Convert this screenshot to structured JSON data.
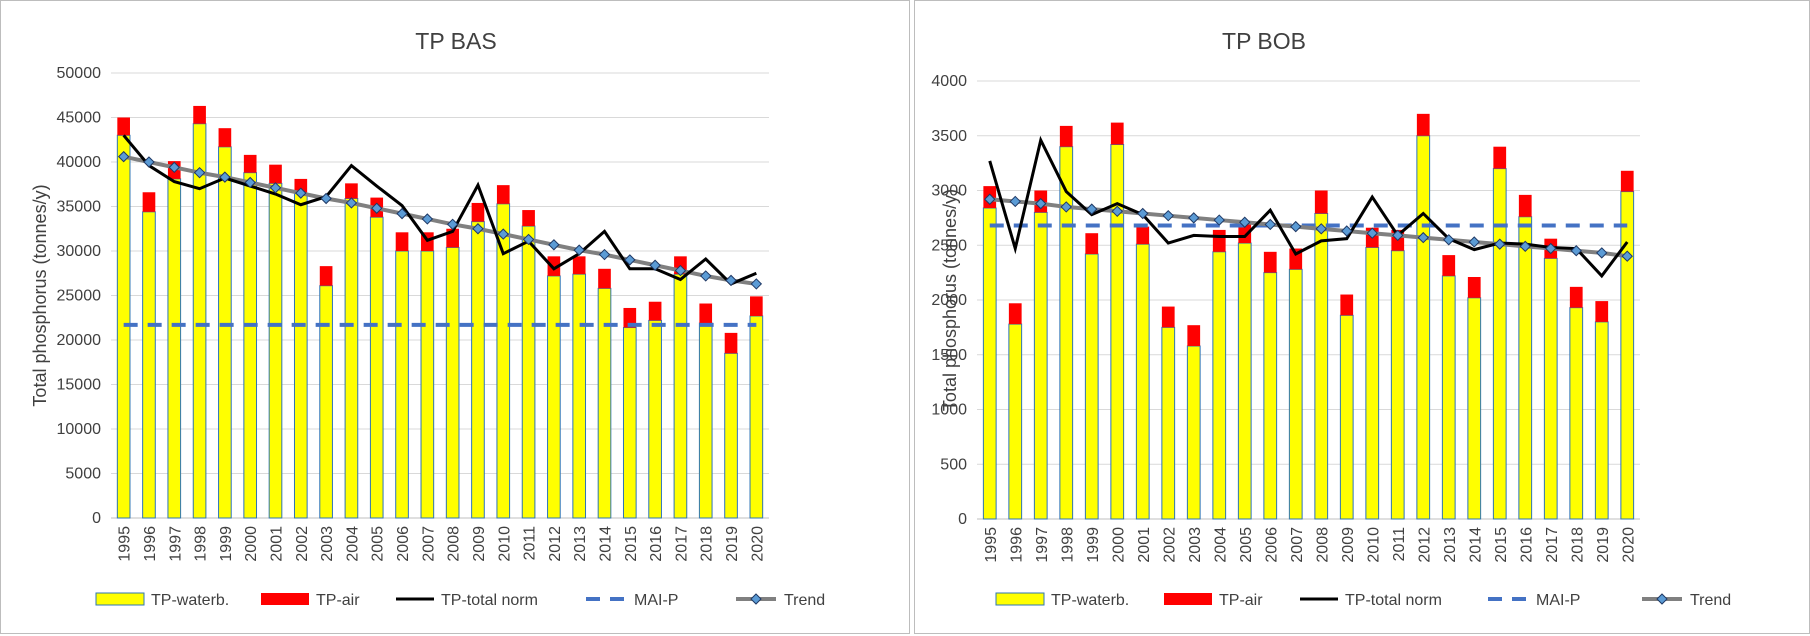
{
  "legend": {
    "waterb": "TP-waterb.",
    "air": "TP-air",
    "total": "TP-total norm",
    "maip": "MAI-P",
    "trend": "Trend"
  },
  "colors": {
    "waterb_fill": "#ffff00",
    "waterb_stroke": "#2e75b6",
    "air": "#ff0000",
    "total": "#000000",
    "maip": "#4472c4",
    "trend": "#808080",
    "trend_marker": "#5b9bd5",
    "grid": "#d9d9d9"
  },
  "chart_data": [
    {
      "type": "bar",
      "title": "TP BAS",
      "ylabel": "Total phosphorus (tonnes/y)",
      "xlabel": "",
      "ylim": [
        0,
        50000
      ],
      "yticks": [
        0,
        5000,
        10000,
        15000,
        20000,
        25000,
        30000,
        35000,
        40000,
        45000,
        50000
      ],
      "grid": true,
      "legend_position": "bottom",
      "categories": [
        "1995",
        "1996",
        "1997",
        "1998",
        "1999",
        "2000",
        "2001",
        "2002",
        "2003",
        "2004",
        "2005",
        "2006",
        "2007",
        "2008",
        "2009",
        "2010",
        "2011",
        "2012",
        "2013",
        "2014",
        "2015",
        "2016",
        "2017",
        "2018",
        "2019",
        "2020"
      ],
      "series": [
        {
          "name": "TP-waterb.",
          "kind": "stacked-bar",
          "values": [
            43000,
            34400,
            38100,
            44300,
            41700,
            38800,
            37600,
            36500,
            26100,
            35900,
            33800,
            30000,
            30000,
            30400,
            33300,
            35300,
            32800,
            27200,
            27400,
            25800,
            21400,
            22200,
            27400,
            21900,
            18500,
            22700
          ]
        },
        {
          "name": "TP-air",
          "kind": "stacked-bar",
          "values": [
            2000,
            2200,
            2000,
            2000,
            2100,
            2000,
            2100,
            1600,
            2200,
            1700,
            2200,
            2100,
            2100,
            2100,
            2100,
            2100,
            1800,
            2200,
            2000,
            2200,
            2200,
            2100,
            2000,
            2200,
            2300,
            2200
          ]
        },
        {
          "name": "TP-total norm",
          "kind": "line",
          "values": [
            43000,
            39600,
            37800,
            37000,
            38200,
            37300,
            36400,
            35200,
            36100,
            39600,
            37300,
            35100,
            31200,
            32200,
            37400,
            29700,
            31100,
            28000,
            29700,
            32200,
            28000,
            28000,
            26800,
            29100,
            26300,
            27500
          ]
        },
        {
          "name": "MAI-P",
          "kind": "dashed-line",
          "values": [
            21700,
            21700,
            21700,
            21700,
            21700,
            21700,
            21700,
            21700,
            21700,
            21700,
            21700,
            21700,
            21700,
            21700,
            21700,
            21700,
            21700,
            21700,
            21700,
            21700,
            21700,
            21700,
            21700,
            21700,
            21700,
            21700
          ]
        },
        {
          "name": "Trend",
          "kind": "line-marker",
          "values": [
            40600,
            40000,
            39400,
            38800,
            38300,
            37700,
            37100,
            36500,
            35900,
            35400,
            34800,
            34200,
            33600,
            33000,
            32500,
            31900,
            31300,
            30700,
            30100,
            29600,
            29000,
            28400,
            27800,
            27200,
            26700,
            26300
          ]
        }
      ]
    },
    {
      "type": "bar",
      "title": "TP BOB",
      "ylabel": "Total phosphorus (tonnes/y)",
      "xlabel": "",
      "ylim": [
        0,
        4000
      ],
      "yticks": [
        0,
        500,
        1000,
        1500,
        2000,
        2500,
        3000,
        3500,
        4000
      ],
      "grid": true,
      "legend_position": "bottom",
      "categories": [
        "1995",
        "1996",
        "1997",
        "1998",
        "1999",
        "2000",
        "2001",
        "2002",
        "2003",
        "2004",
        "2005",
        "2006",
        "2007",
        "2008",
        "2009",
        "2010",
        "2011",
        "2012",
        "2013",
        "2014",
        "2015",
        "2016",
        "2017",
        "2018",
        "2019",
        "2020"
      ],
      "series": [
        {
          "name": "TP-waterb.",
          "kind": "stacked-bar",
          "values": [
            2840,
            1780,
            2800,
            3400,
            2420,
            3420,
            2510,
            1750,
            1580,
            2440,
            2520,
            2250,
            2280,
            2790,
            1860,
            2480,
            2450,
            3500,
            2220,
            2020,
            3200,
            2760,
            2380,
            1930,
            1800,
            2990
          ]
        },
        {
          "name": "TP-air",
          "kind": "stacked-bar",
          "values": [
            200,
            190,
            200,
            190,
            190,
            200,
            160,
            190,
            190,
            200,
            200,
            190,
            190,
            210,
            190,
            180,
            190,
            200,
            190,
            190,
            200,
            200,
            180,
            190,
            190,
            190
          ]
        },
        {
          "name": "TP-total norm",
          "kind": "line",
          "values": [
            3270,
            2470,
            3460,
            2990,
            2780,
            2880,
            2780,
            2520,
            2590,
            2580,
            2580,
            2820,
            2420,
            2540,
            2560,
            2940,
            2590,
            2790,
            2560,
            2460,
            2520,
            2510,
            2480,
            2470,
            2220,
            2530
          ]
        },
        {
          "name": "MAI-P",
          "kind": "dashed-line",
          "values": [
            2680,
            2680,
            2680,
            2680,
            2680,
            2680,
            2680,
            2680,
            2680,
            2680,
            2680,
            2680,
            2680,
            2680,
            2680,
            2680,
            2680,
            2680,
            2680,
            2680,
            2680,
            2680,
            2680,
            2680,
            2680,
            2680
          ]
        },
        {
          "name": "Trend",
          "kind": "line-marker",
          "values": [
            2920,
            2900,
            2880,
            2850,
            2830,
            2810,
            2790,
            2770,
            2750,
            2730,
            2710,
            2690,
            2670,
            2650,
            2630,
            2610,
            2590,
            2570,
            2550,
            2530,
            2510,
            2490,
            2470,
            2450,
            2430,
            2400
          ]
        }
      ]
    }
  ]
}
